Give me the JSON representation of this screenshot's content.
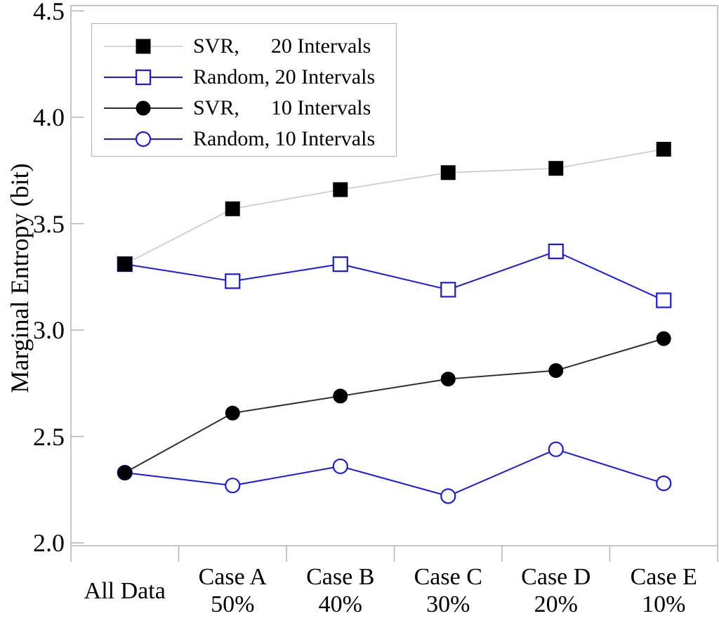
{
  "chart_data": {
    "type": "line",
    "title": "",
    "xlabel": "",
    "ylabel": "Marginal Entropy (bit)",
    "ylim": [
      2.0,
      4.5
    ],
    "yticks": [
      2.0,
      2.5,
      3.0,
      3.5,
      4.0,
      4.5
    ],
    "ytick_labels": [
      "2.0",
      "2.5",
      "3.0",
      "3.5",
      "4.0",
      "4.5"
    ],
    "categories": [
      "All Data",
      "Case A 50%",
      "Case B 40%",
      "Case C 30%",
      "Case D 20%",
      "Case E 10%"
    ],
    "category_lines": [
      [
        "All Data",
        ""
      ],
      [
        "Case A",
        "50%"
      ],
      [
        "Case B",
        "40%"
      ],
      [
        "Case C",
        "30%"
      ],
      [
        "Case D",
        "20%"
      ],
      [
        "Case E",
        "10%"
      ]
    ],
    "grid": false,
    "legend_position": "top-left",
    "series": [
      {
        "name": "SVR, 20 Intervals",
        "legend_label": "SVR,      20 Intervals",
        "marker": "filled-square",
        "marker_color": "#000000",
        "line_color": "#c9c9c9",
        "values": [
          3.31,
          3.57,
          3.66,
          3.74,
          3.76,
          3.85
        ]
      },
      {
        "name": "Random, 20 Intervals",
        "legend_label": "Random, 20 Intervals",
        "marker": "open-square",
        "marker_color": "#1a1ae6",
        "line_color": "#1a1ae6",
        "values": [
          3.31,
          3.23,
          3.31,
          3.19,
          3.37,
          3.14
        ]
      },
      {
        "name": "SVR, 10 Intervals",
        "legend_label": "SVR,      10 Intervals",
        "marker": "filled-circle",
        "marker_color": "#000000",
        "line_color": "#2e2e2e",
        "values": [
          2.33,
          2.61,
          2.69,
          2.77,
          2.81,
          2.96
        ]
      },
      {
        "name": "Random, 10 Intervals",
        "legend_label": "Random, 10 Intervals",
        "marker": "open-circle",
        "marker_color": "#1a1ae6",
        "line_color": "#1a1ae6",
        "values": [
          2.33,
          2.27,
          2.36,
          2.22,
          2.44,
          2.28
        ]
      }
    ],
    "colors": {
      "frame": "#b3b3b3",
      "text": "#000000",
      "background": "#ffffff",
      "blue": "#1a1ae6"
    }
  }
}
